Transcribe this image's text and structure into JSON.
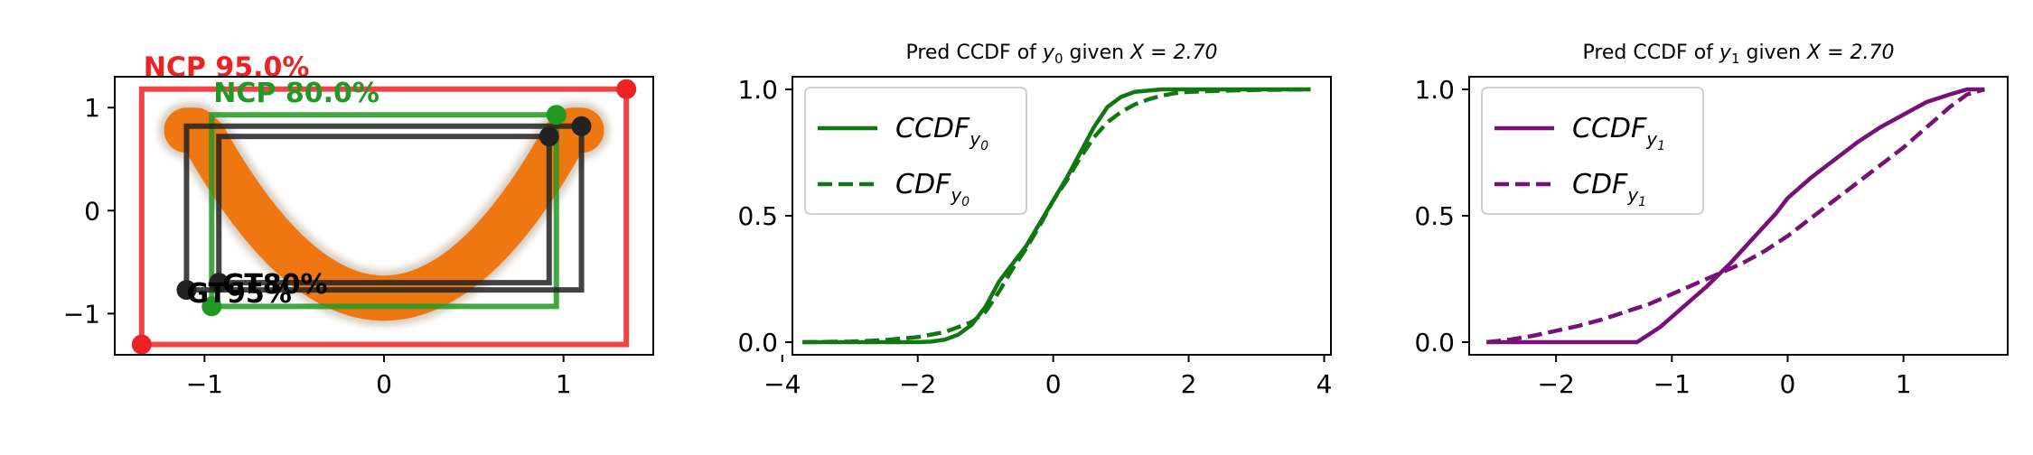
{
  "chart_data": [
    {
      "type": "scatter",
      "title": "",
      "xlim": [
        -1.5,
        1.5
      ],
      "ylim": [
        -1.4,
        1.3
      ],
      "xticks": [
        -1,
        0,
        1
      ],
      "xtick_labels": [
        "−1",
        "0",
        "1"
      ],
      "yticks": [
        -1,
        0,
        1
      ],
      "ytick_labels": [
        "−1",
        "0",
        "1"
      ],
      "scatter_color": "#ee7711",
      "boxes": [
        {
          "label": "NCP 95.0%",
          "color": "#ee2222",
          "x0": -1.35,
          "y0": -1.3,
          "x1": 1.35,
          "y1": 1.18
        },
        {
          "label": "NCP 80.0%",
          "color": "#229922",
          "x0": -0.96,
          "y0": -0.93,
          "x1": 0.96,
          "y1": 0.93
        },
        {
          "label": "GT95%",
          "color": "#222222",
          "x0": -1.1,
          "y0": -0.77,
          "x1": 1.1,
          "y1": 0.82
        },
        {
          "label": "GT80%",
          "color": "#222222",
          "x0": -0.92,
          "y0": -0.7,
          "x1": 0.92,
          "y1": 0.72
        }
      ]
    },
    {
      "type": "line",
      "title_prefix": "Pred CCDF of ",
      "title_var": "y",
      "title_sub": "0",
      "title_suffix": " given ",
      "title_eq": "X = 2.70",
      "xlim": [
        -3.85,
        4.1
      ],
      "ylim": [
        -0.05,
        1.05
      ],
      "xticks": [
        -4,
        -2,
        0,
        2,
        4
      ],
      "xtick_labels": [
        "−4",
        "−2",
        "0",
        "2",
        "4"
      ],
      "yticks": [
        0.0,
        0.5,
        1.0
      ],
      "ytick_labels": [
        "0.0",
        "0.5",
        "1.0"
      ],
      "color": "#117711",
      "legend_position": "top-left",
      "series": [
        {
          "name": "CCDF",
          "sub": "y0",
          "dash": "solid",
          "x": [
            -3.7,
            -3.0,
            -2.5,
            -2.0,
            -1.8,
            -1.6,
            -1.4,
            -1.2,
            -1.0,
            -0.8,
            -0.6,
            -0.4,
            -0.2,
            0.0,
            0.2,
            0.4,
            0.6,
            0.8,
            1.0,
            1.2,
            1.4,
            1.6,
            1.8,
            2.0,
            2.5,
            3.0,
            3.8
          ],
          "y": [
            0.0,
            0.0,
            0.0,
            0.0,
            0.002,
            0.01,
            0.03,
            0.07,
            0.14,
            0.24,
            0.31,
            0.38,
            0.47,
            0.56,
            0.65,
            0.75,
            0.85,
            0.93,
            0.97,
            0.99,
            0.995,
            1.0,
            1.0,
            1.0,
            1.0,
            1.0,
            1.0
          ]
        },
        {
          "name": "CDF",
          "sub": "y0",
          "dash": "dashed",
          "x": [
            -3.7,
            -3.0,
            -2.5,
            -2.0,
            -1.6,
            -1.2,
            -1.0,
            -0.8,
            -0.6,
            -0.4,
            -0.2,
            0.0,
            0.2,
            0.4,
            0.6,
            0.8,
            1.0,
            1.2,
            1.4,
            1.6,
            1.8,
            2.0,
            2.5,
            3.0,
            3.8
          ],
          "y": [
            0.0,
            0.002,
            0.008,
            0.02,
            0.04,
            0.08,
            0.12,
            0.2,
            0.29,
            0.37,
            0.46,
            0.56,
            0.64,
            0.73,
            0.81,
            0.87,
            0.91,
            0.94,
            0.96,
            0.975,
            0.985,
            0.99,
            0.995,
            0.998,
            1.0
          ]
        }
      ]
    },
    {
      "type": "line",
      "title_prefix": "Pred CCDF of ",
      "title_var": "y",
      "title_sub": "1",
      "title_suffix": " given ",
      "title_eq": "X = 2.70",
      "xlim": [
        -2.75,
        1.9
      ],
      "ylim": [
        -0.05,
        1.05
      ],
      "xticks": [
        -2,
        -1,
        0,
        1
      ],
      "xtick_labels": [
        "−2",
        "−1",
        "0",
        "1"
      ],
      "yticks": [
        0.0,
        0.5,
        1.0
      ],
      "ytick_labels": [
        "0.0",
        "0.5",
        "1.0"
      ],
      "color": "#771177",
      "legend_position": "top-left",
      "series": [
        {
          "name": "CCDF",
          "sub": "y1",
          "dash": "solid",
          "x": [
            -2.6,
            -2.0,
            -1.6,
            -1.3,
            -1.1,
            -0.9,
            -0.7,
            -0.5,
            -0.3,
            -0.1,
            0.0,
            0.2,
            0.4,
            0.6,
            0.8,
            1.0,
            1.2,
            1.4,
            1.55,
            1.7
          ],
          "y": [
            0.0,
            0.0,
            0.0,
            0.0,
            0.06,
            0.14,
            0.22,
            0.31,
            0.41,
            0.51,
            0.57,
            0.65,
            0.72,
            0.79,
            0.85,
            0.9,
            0.95,
            0.98,
            1.0,
            1.0
          ]
        },
        {
          "name": "CDF",
          "sub": "y1",
          "dash": "dashed",
          "x": [
            -2.6,
            -2.4,
            -2.2,
            -2.0,
            -1.8,
            -1.6,
            -1.4,
            -1.2,
            -1.0,
            -0.8,
            -0.6,
            -0.4,
            -0.2,
            0.0,
            0.2,
            0.4,
            0.6,
            0.8,
            1.0,
            1.2,
            1.4,
            1.55,
            1.7
          ],
          "y": [
            0.0,
            0.01,
            0.025,
            0.045,
            0.065,
            0.09,
            0.12,
            0.15,
            0.19,
            0.23,
            0.27,
            0.31,
            0.36,
            0.42,
            0.49,
            0.56,
            0.63,
            0.7,
            0.77,
            0.85,
            0.93,
            0.98,
            1.0
          ]
        }
      ]
    }
  ]
}
